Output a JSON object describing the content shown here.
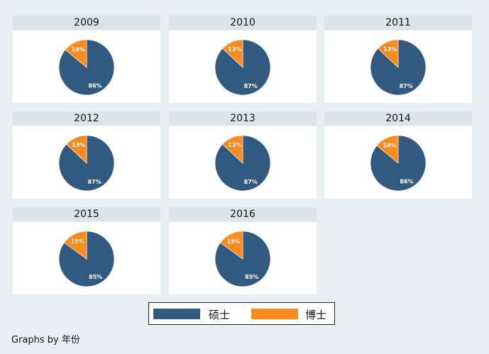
{
  "chart_data": {
    "type": "pie",
    "facet_by": "年份",
    "categories": [
      "硕士",
      "博士"
    ],
    "colors": [
      "#325a80",
      "#fb8b1e"
    ],
    "panels": [
      {
        "title": "2009",
        "values": [
          86,
          14
        ],
        "labels": [
          "86%",
          "14%"
        ]
      },
      {
        "title": "2010",
        "values": [
          87,
          13
        ],
        "labels": [
          "87%",
          "13%"
        ]
      },
      {
        "title": "2011",
        "values": [
          87,
          13
        ],
        "labels": [
          "87%",
          "13%"
        ]
      },
      {
        "title": "2012",
        "values": [
          87,
          13
        ],
        "labels": [
          "87%",
          "13%"
        ]
      },
      {
        "title": "2013",
        "values": [
          87,
          13
        ],
        "labels": [
          "87%",
          "13%"
        ]
      },
      {
        "title": "2014",
        "values": [
          86,
          14
        ],
        "labels": [
          "86%",
          "14%"
        ]
      },
      {
        "title": "2015",
        "values": [
          85,
          15
        ],
        "labels": [
          "85%",
          "15%"
        ]
      },
      {
        "title": "2016",
        "values": [
          85,
          15
        ],
        "labels": [
          "85%",
          "15%"
        ]
      }
    ],
    "legend": {
      "position": "bottom",
      "items": [
        {
          "label": "硕士",
          "color": "#325a80"
        },
        {
          "label": "博士",
          "color": "#fb8b1e"
        }
      ]
    }
  },
  "note": "Graphs by 年份"
}
